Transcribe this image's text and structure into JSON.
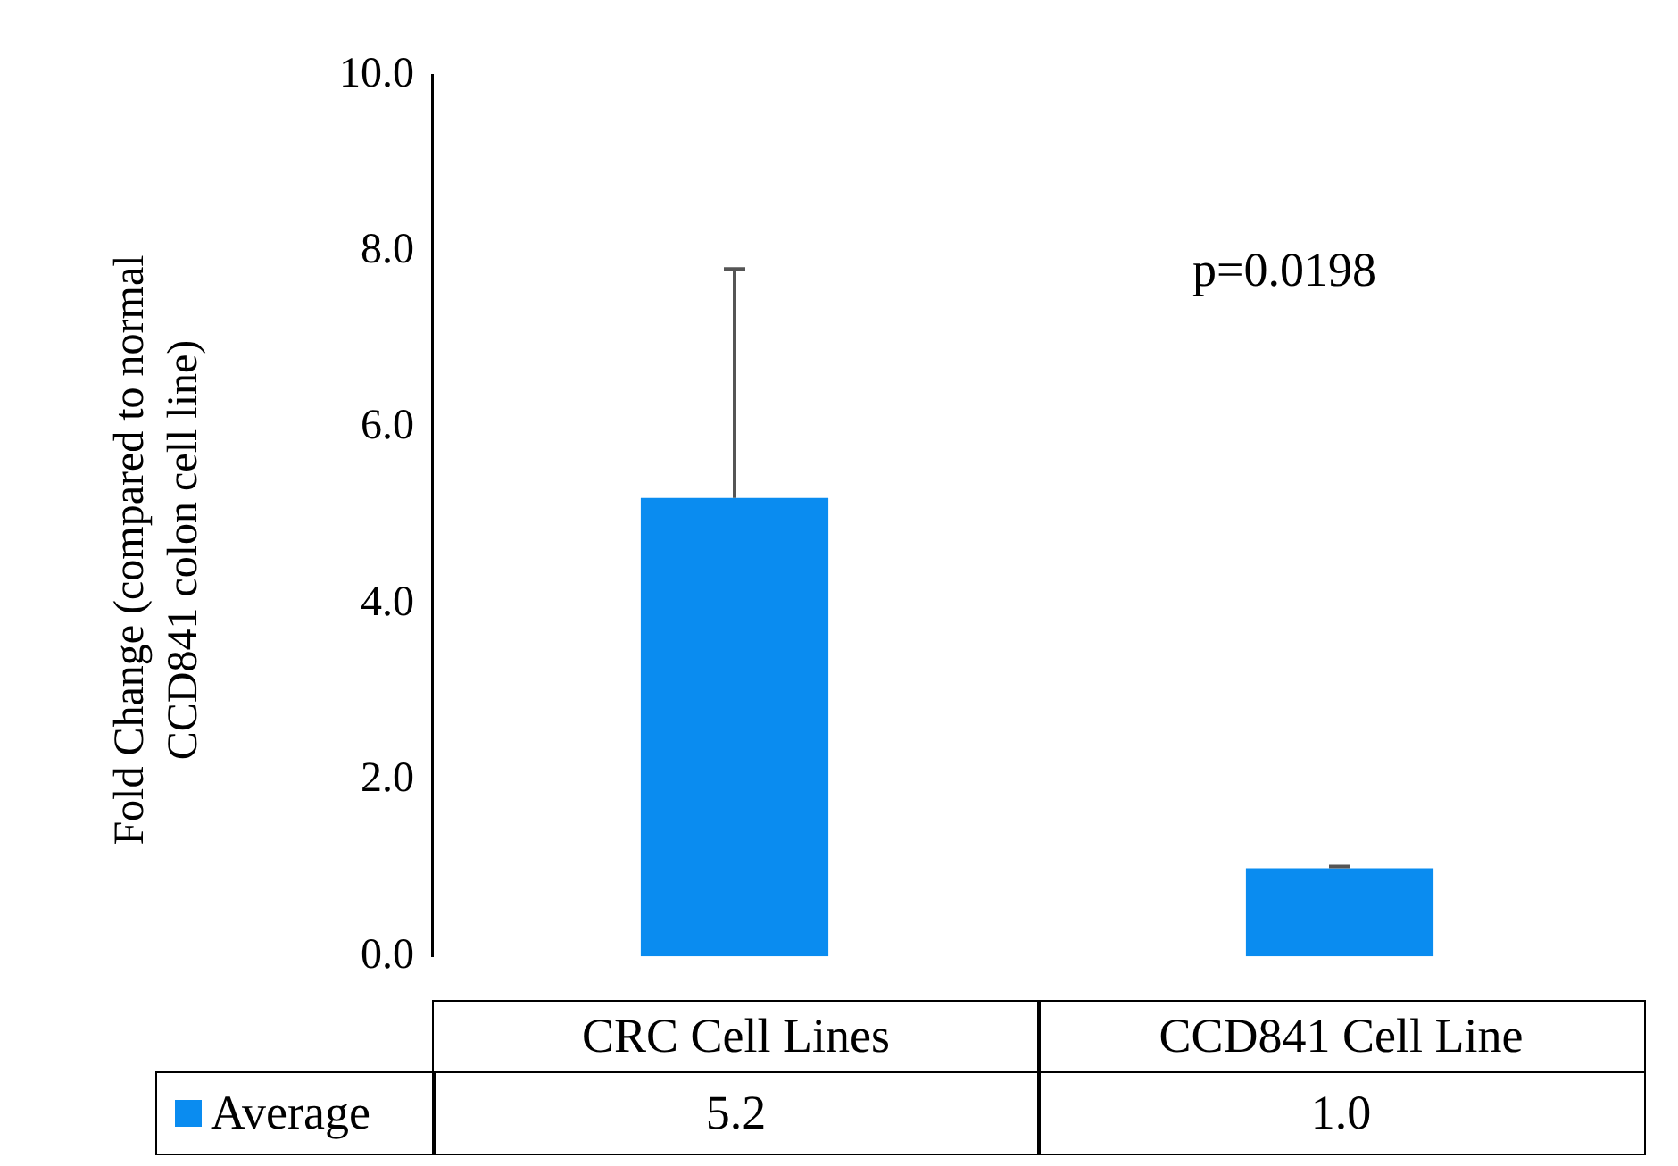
{
  "chart_data": {
    "type": "bar",
    "ylabel": "Fold Change (compared to normal CCD841 colon cell line)",
    "categories": [
      "CRC Cell Lines",
      "CCD841 Cell Line"
    ],
    "series": [
      {
        "name": "Average",
        "color": "#0a8cf0",
        "values": [
          5.2,
          1.0
        ],
        "value_labels": [
          "5.2",
          "1.0"
        ],
        "errors": [
          [
            5.2,
            7.8
          ],
          [
            1.0,
            1.02
          ]
        ]
      }
    ],
    "ylim": [
      0,
      10
    ],
    "yticks": [
      {
        "value": 0,
        "label": "0.0"
      },
      {
        "value": 2,
        "label": "2.0"
      },
      {
        "value": 4,
        "label": "4.0"
      },
      {
        "value": 6,
        "label": "6.0"
      },
      {
        "value": 8,
        "label": "8.0"
      },
      {
        "value": 10,
        "label": "10.0"
      }
    ],
    "annotations": [
      "p=0.0198"
    ],
    "legend": "bottom",
    "grid": false
  }
}
